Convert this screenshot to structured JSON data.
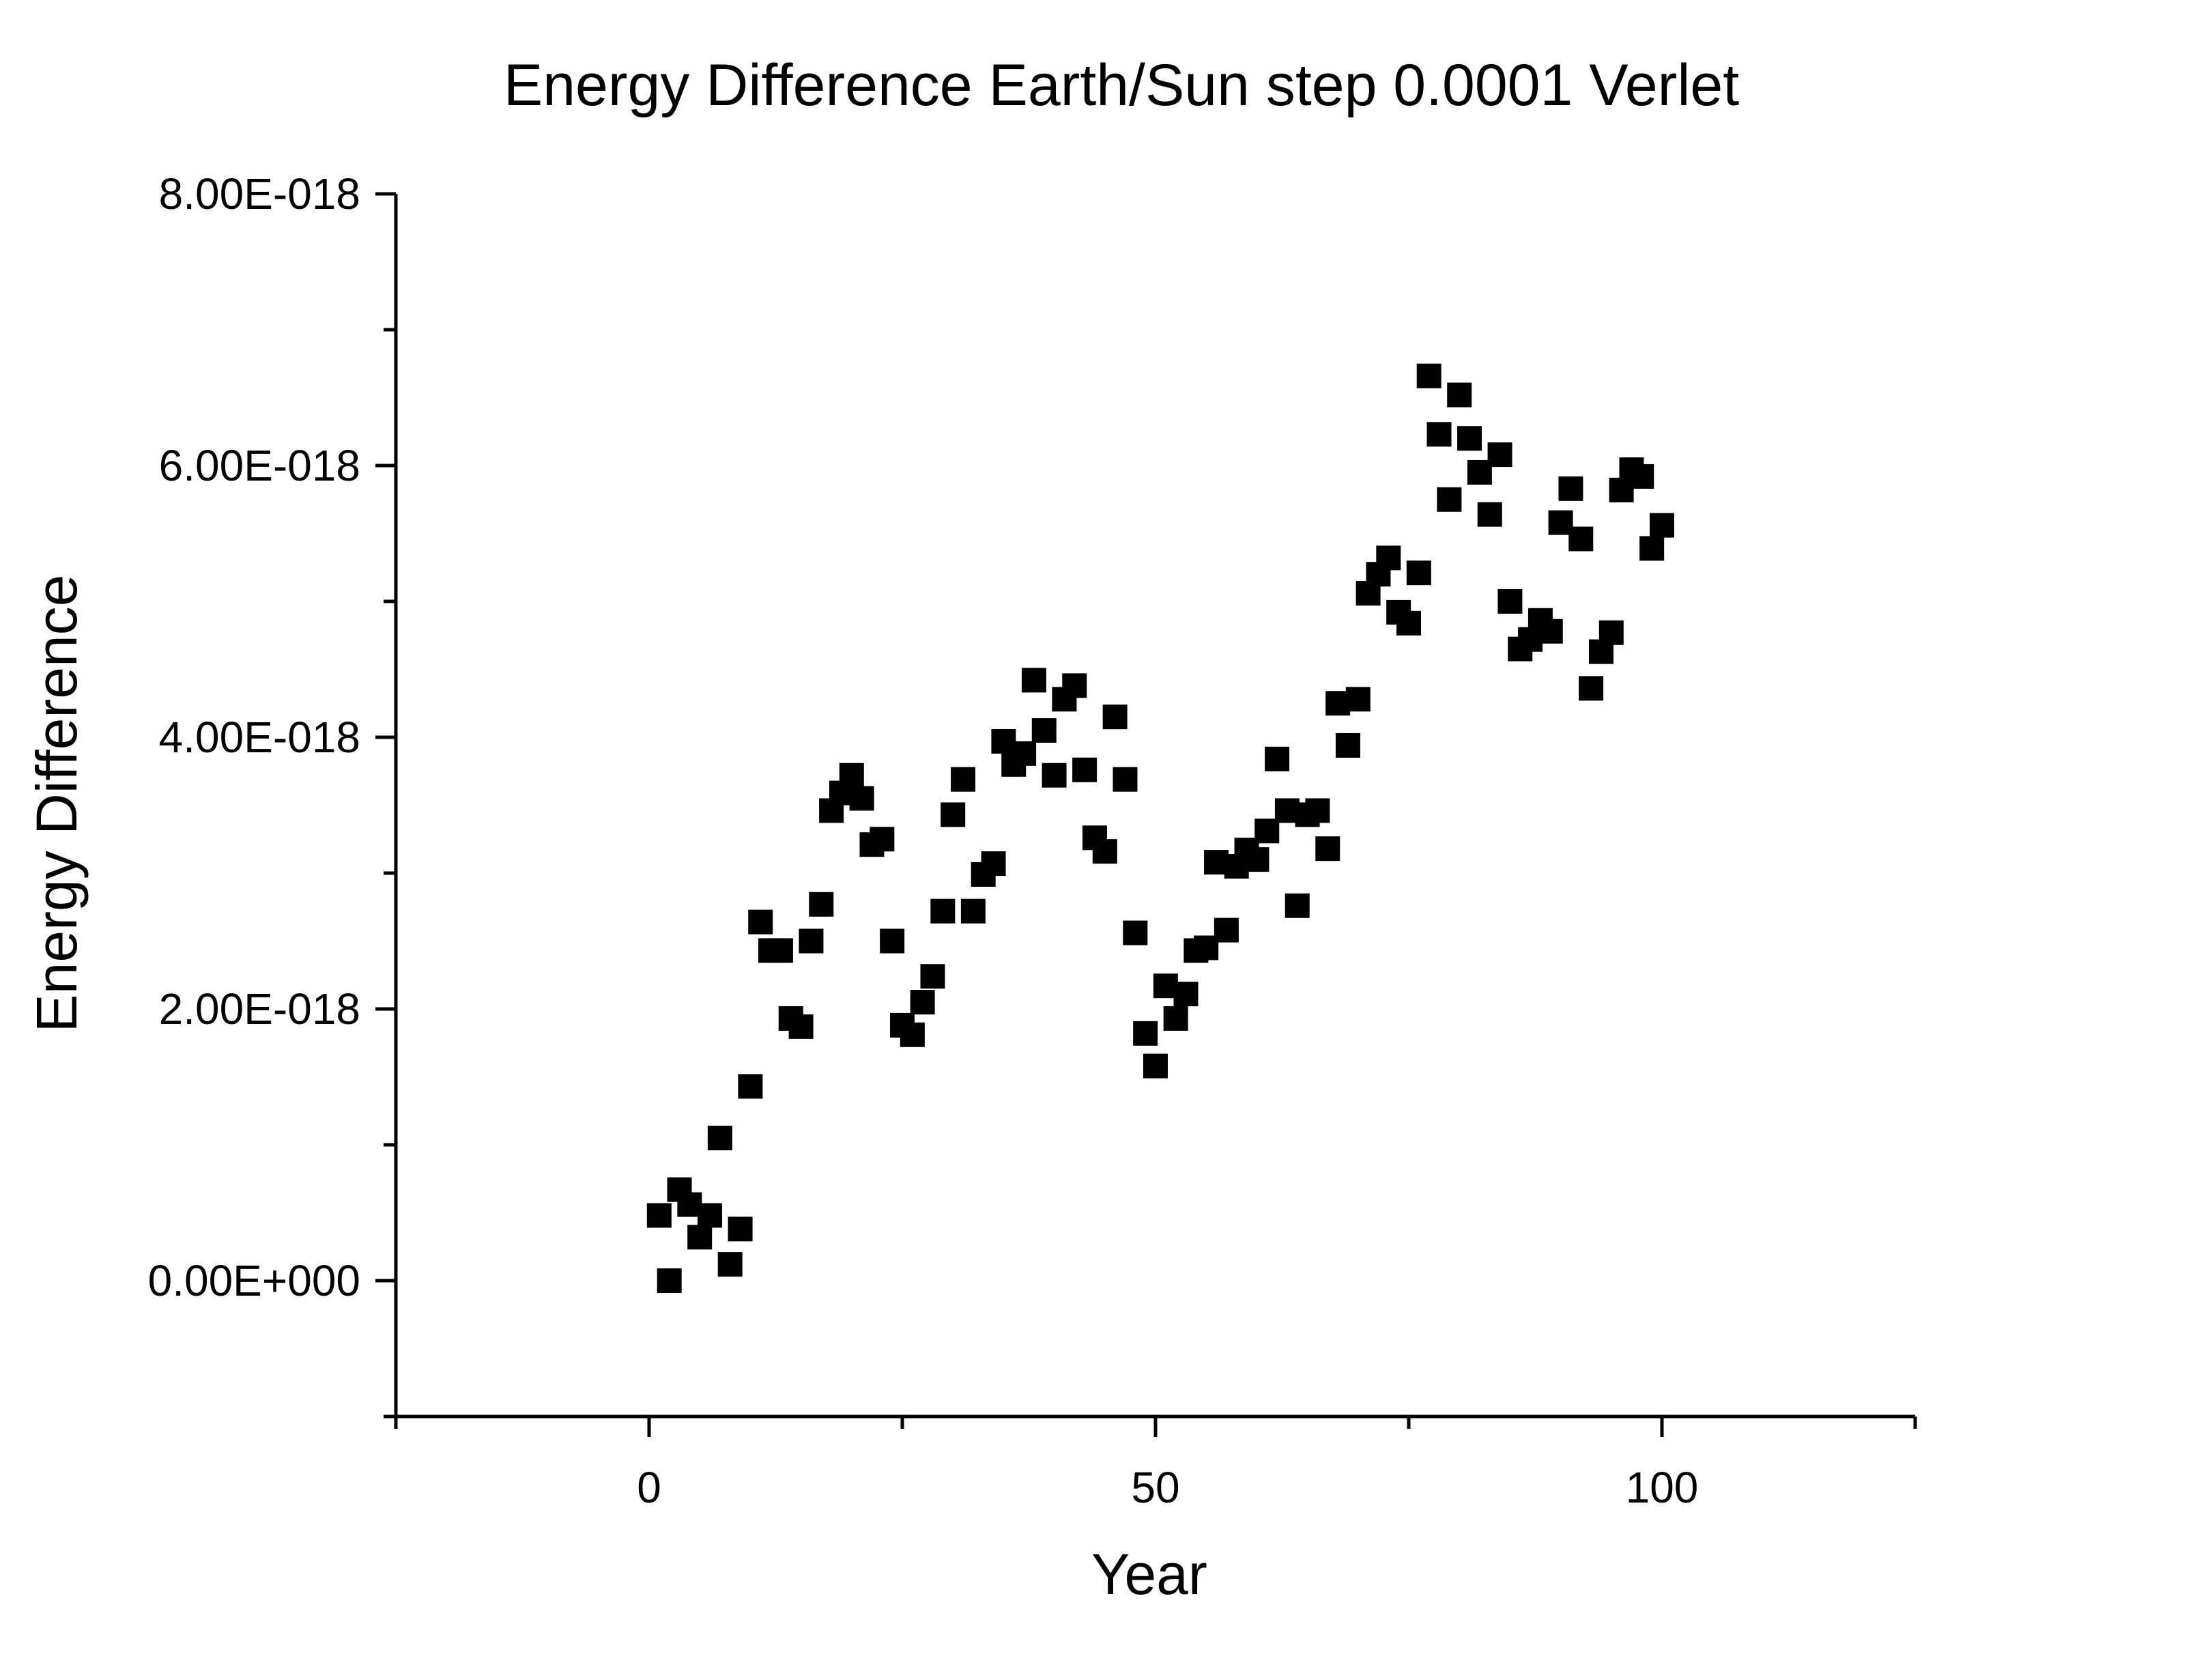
{
  "chart_data": {
    "type": "scatter",
    "title": "Energy Difference Earth/Sun step 0.0001 Verlet",
    "xlabel": "Year",
    "ylabel": "Energy Difference",
    "xlim": [
      -25,
      125
    ],
    "ylim": [
      -1e-18,
      8e-18
    ],
    "x_ticks": [
      0,
      50,
      100
    ],
    "x_tick_labels": [
      "0",
      "50",
      "100"
    ],
    "x_minor_ticks": [
      -25,
      25,
      75,
      125
    ],
    "y_ticks": [
      0,
      2e-18,
      4e-18,
      6e-18,
      8e-18
    ],
    "y_tick_labels": [
      "0.00E+000",
      "2.00E-018",
      "4.00E-018",
      "6.00E-018",
      "8.00E-018"
    ],
    "y_minor_ticks": [
      -1e-18,
      1e-18,
      3e-18,
      5e-18,
      7e-18
    ],
    "grid": false,
    "marker": "square",
    "color": "#000000",
    "series": [
      {
        "x": [
          1,
          2,
          3,
          4,
          5,
          6,
          7,
          8,
          9,
          10,
          11,
          12,
          13,
          14,
          15,
          16,
          17,
          18,
          19,
          20,
          21,
          22,
          23,
          24,
          25,
          26,
          27,
          28,
          29,
          30,
          31,
          32,
          33,
          34,
          35,
          36,
          37,
          38,
          39,
          40,
          41,
          42,
          43,
          44,
          45,
          46,
          47,
          48,
          49,
          50,
          51,
          52,
          53,
          54,
          55,
          56,
          57,
          58,
          59,
          60,
          61,
          62,
          63,
          64,
          65,
          66,
          67,
          68,
          69,
          70,
          71,
          72,
          73,
          74,
          75,
          76,
          77,
          78,
          79,
          80,
          81,
          82,
          83,
          84,
          85,
          86,
          87,
          88,
          89,
          90,
          91,
          92,
          93,
          94,
          95,
          96,
          97,
          98,
          99,
          100
        ],
        "y": [
          4.8e-19,
          0.0,
          6.7e-19,
          5.6e-19,
          3.2e-19,
          4.8e-19,
          1.05e-18,
          1.2e-19,
          3.8e-19,
          1.43e-18,
          2.64e-18,
          2.43e-18,
          2.43e-18,
          1.93e-18,
          1.87e-18,
          2.5e-18,
          2.77e-18,
          3.46e-18,
          3.59e-18,
          3.72e-18,
          3.55e-18,
          3.21e-18,
          3.25e-18,
          2.5e-18,
          1.88e-18,
          1.81e-18,
          2.05e-18,
          2.24e-18,
          2.72e-18,
          3.43e-18,
          3.69e-18,
          2.72e-18,
          2.99e-18,
          3.07e-18,
          3.97e-18,
          3.8e-18,
          3.88e-18,
          4.42e-18,
          4.05e-18,
          3.72e-18,
          4.28e-18,
          4.38e-18,
          3.76e-18,
          3.26e-18,
          3.16e-18,
          4.15e-18,
          3.69e-18,
          2.56e-18,
          1.82e-18,
          1.58e-18,
          2.17e-18,
          1.93e-18,
          2.11e-18,
          2.43e-18,
          2.45e-18,
          3.08e-18,
          2.58e-18,
          3.05e-18,
          3.17e-18,
          3.1e-18,
          3.31e-18,
          3.84e-18,
          3.46e-18,
          2.76e-18,
          3.43e-18,
          3.46e-18,
          3.18e-18,
          4.25e-18,
          3.94e-18,
          4.28e-18,
          5.06e-18,
          5.2e-18,
          5.32e-18,
          4.92e-18,
          4.84e-18,
          5.21e-18,
          6.66e-18,
          6.23e-18,
          5.75e-18,
          6.52e-18,
          6.2e-18,
          5.95e-18,
          5.64e-18,
          6.08e-18,
          5e-18,
          4.65e-18,
          4.72e-18,
          4.86e-18,
          4.78e-18,
          5.58e-18,
          5.83e-18,
          5.46e-18,
          4.36e-18,
          4.63e-18,
          4.77e-18,
          5.82e-18,
          5.97e-18,
          5.92e-18,
          5.39e-18,
          5.56e-18
        ]
      }
    ]
  }
}
